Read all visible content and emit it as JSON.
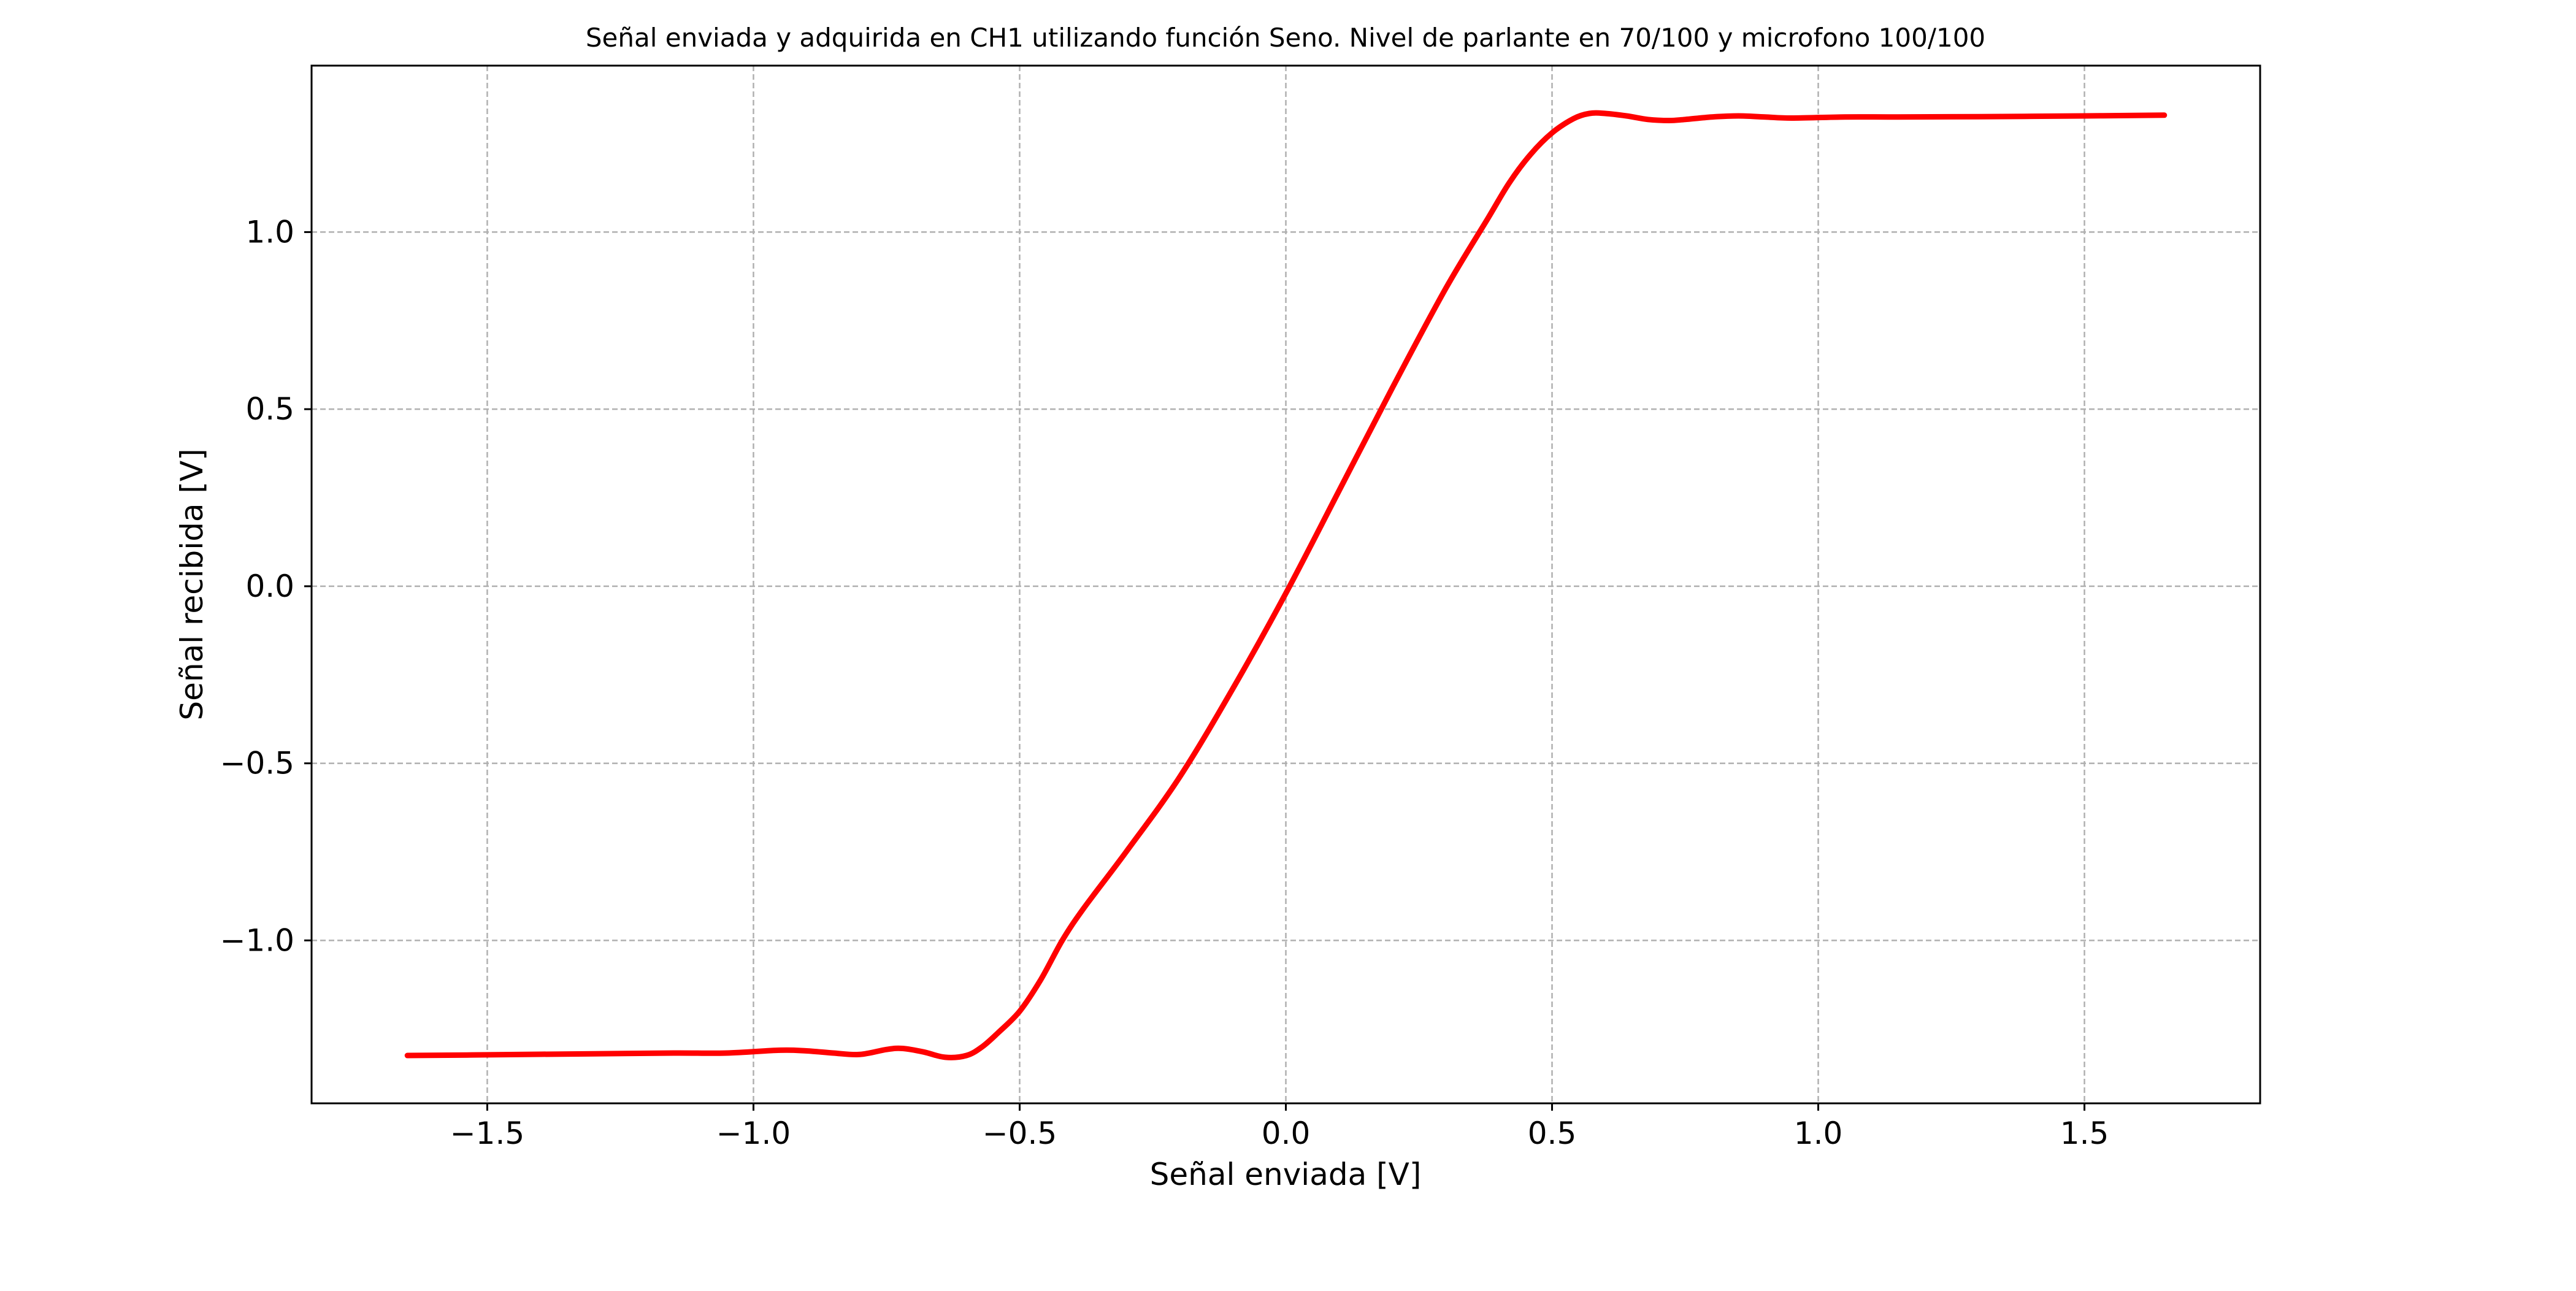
{
  "chart_data": {
    "type": "line",
    "title": "Señal enviada y adquirida en CH1 utilizando función Seno. Nivel de parlante en 70/100 y microfono 100/100",
    "xlabel": "Señal enviada [V]",
    "ylabel": "Señal recibida [V]",
    "xlim": [
      -1.83,
      1.83
    ],
    "ylim": [
      -1.46,
      1.47
    ],
    "grid": true,
    "legend": "none",
    "x_ticks": [
      {
        "value": -1.5,
        "label": "−1.5"
      },
      {
        "value": -1.0,
        "label": "−1.0"
      },
      {
        "value": -0.5,
        "label": "−0.5"
      },
      {
        "value": 0.0,
        "label": "0.0"
      },
      {
        "value": 0.5,
        "label": "0.5"
      },
      {
        "value": 1.0,
        "label": "1.0"
      },
      {
        "value": 1.5,
        "label": "1.5"
      }
    ],
    "y_ticks": [
      {
        "value": -1.0,
        "label": "−1.0"
      },
      {
        "value": -0.5,
        "label": "−0.5"
      },
      {
        "value": 0.0,
        "label": "0.0"
      },
      {
        "value": 0.5,
        "label": "0.5"
      },
      {
        "value": 1.0,
        "label": "1.0"
      }
    ],
    "series": [
      {
        "color": "#ff0000",
        "x": [
          -1.65,
          -1.5,
          -1.3,
          -1.15,
          -1.05,
          -0.95,
          -0.9,
          -0.85,
          -0.8,
          -0.75,
          -0.72,
          -0.68,
          -0.64,
          -0.6,
          -0.57,
          -0.54,
          -0.5,
          -0.46,
          -0.42,
          -0.38,
          -0.3,
          -0.2,
          -0.1,
          0.0,
          0.1,
          0.2,
          0.3,
          0.38,
          0.42,
          0.46,
          0.5,
          0.54,
          0.57,
          0.6,
          0.64,
          0.68,
          0.72,
          0.75,
          0.8,
          0.85,
          0.9,
          0.95,
          1.05,
          1.15,
          1.3,
          1.5,
          1.65
        ],
        "y": [
          -1.325,
          -1.323,
          -1.32,
          -1.318,
          -1.318,
          -1.31,
          -1.312,
          -1.318,
          -1.322,
          -1.308,
          -1.305,
          -1.315,
          -1.33,
          -1.325,
          -1.3,
          -1.26,
          -1.2,
          -1.11,
          -1.0,
          -0.91,
          -0.75,
          -0.54,
          -0.29,
          -0.02,
          0.27,
          0.56,
          0.84,
          1.04,
          1.14,
          1.22,
          1.28,
          1.32,
          1.335,
          1.335,
          1.328,
          1.318,
          1.315,
          1.318,
          1.325,
          1.328,
          1.325,
          1.322,
          1.325,
          1.325,
          1.326,
          1.328,
          1.33
        ]
      }
    ]
  }
}
